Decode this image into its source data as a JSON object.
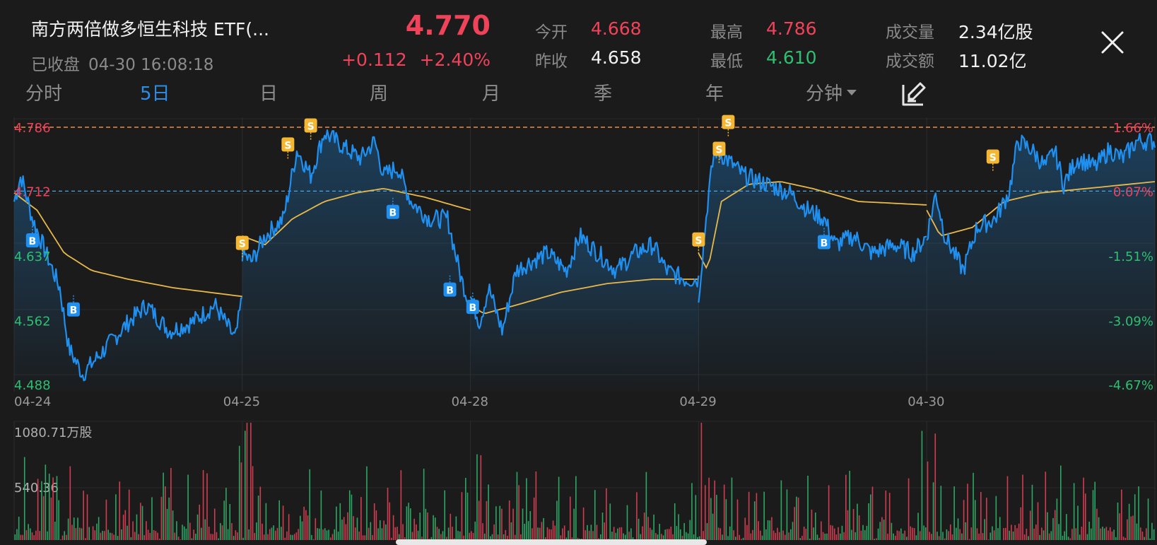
{
  "header": {
    "title": "南方两倍做多恒生科技 ETF(...",
    "status": "已收盘",
    "datetime": "04-30 16:08:18",
    "price": "4.770",
    "change": "+0.112",
    "change_pct": "+2.40%"
  },
  "stats": {
    "open_label": "今开",
    "open_value": "4.668",
    "prev_close_label": "昨收",
    "prev_close_value": "4.658",
    "high_label": "最高",
    "high_value": "4.786",
    "low_label": "最低",
    "low_value": "4.610",
    "volume_label": "成交量",
    "volume_value": "2.34亿股",
    "turnover_label": "成交额",
    "turnover_value": "11.02亿"
  },
  "tabs": [
    "分时",
    "5日",
    "日",
    "周",
    "月",
    "季",
    "年",
    "分钟"
  ],
  "active_tab": "5日",
  "icons": {
    "close": "close-icon",
    "draw": "draw-edit-icon",
    "dropdown": "caret-down-icon"
  },
  "colors": {
    "up": "#f0435a",
    "down": "#2fbf71",
    "price_line": "#1f8ff0",
    "avg_line": "#e8b94a",
    "buy_marker": "#1f8ff0",
    "sell_marker": "#f5b731"
  },
  "price_axis_left": [
    "4.786",
    "4.712",
    "4.637",
    "4.562",
    "4.488"
  ],
  "price_axis_right": [
    "1.66%",
    "0.07%",
    "-1.51%",
    "-3.09%",
    "-4.67%"
  ],
  "date_axis": [
    "04-24",
    "04-25",
    "04-28",
    "04-29",
    "04-30"
  ],
  "volume_axis": [
    "1080.71万股",
    "540.36"
  ],
  "chart_data": {
    "type": "line",
    "x": [
      "04-24",
      "04-25",
      "04-28",
      "04-29",
      "04-30"
    ],
    "ylim": [
      4.488,
      4.786
    ],
    "reference_lines": {
      "high": 4.786,
      "prev_close": 4.712
    },
    "series": [
      {
        "kind": "price",
        "days": [
          [
            [
              0,
              4.7
            ],
            [
              0.03,
              4.73
            ],
            [
              0.08,
              4.68
            ],
            [
              0.14,
              4.64
            ],
            [
              0.2,
              4.6
            ],
            [
              0.24,
              4.53
            ],
            [
              0.3,
              4.5
            ],
            [
              0.4,
              4.53
            ],
            [
              0.5,
              4.56
            ],
            [
              0.58,
              4.58
            ],
            [
              0.68,
              4.55
            ],
            [
              0.78,
              4.56
            ],
            [
              0.88,
              4.58
            ],
            [
              0.97,
              4.54
            ],
            [
              1.0,
              4.59
            ]
          ],
          [
            [
              0,
              4.64
            ],
            [
              0.04,
              4.63
            ],
            [
              0.1,
              4.66
            ],
            [
              0.18,
              4.68
            ],
            [
              0.24,
              4.76
            ],
            [
              0.3,
              4.73
            ],
            [
              0.36,
              4.78
            ],
            [
              0.46,
              4.76
            ],
            [
              0.52,
              4.75
            ],
            [
              0.58,
              4.77
            ],
            [
              0.62,
              4.73
            ],
            [
              0.68,
              4.74
            ],
            [
              0.74,
              4.7
            ],
            [
              0.82,
              4.68
            ],
            [
              0.9,
              4.68
            ],
            [
              0.96,
              4.61
            ],
            [
              1.0,
              4.58
            ]
          ],
          [
            [
              0,
              4.59
            ],
            [
              0.04,
              4.56
            ],
            [
              0.08,
              4.6
            ],
            [
              0.14,
              4.55
            ],
            [
              0.2,
              4.62
            ],
            [
              0.26,
              4.63
            ],
            [
              0.34,
              4.64
            ],
            [
              0.42,
              4.62
            ],
            [
              0.48,
              4.66
            ],
            [
              0.56,
              4.64
            ],
            [
              0.64,
              4.62
            ],
            [
              0.72,
              4.64
            ],
            [
              0.8,
              4.65
            ],
            [
              0.86,
              4.62
            ],
            [
              0.94,
              4.61
            ],
            [
              1.0,
              4.61
            ]
          ],
          [
            [
              0,
              4.59
            ],
            [
              0.04,
              4.7
            ],
            [
              0.07,
              4.76
            ],
            [
              0.12,
              4.75
            ],
            [
              0.2,
              4.73
            ],
            [
              0.3,
              4.72
            ],
            [
              0.4,
              4.71
            ],
            [
              0.48,
              4.69
            ],
            [
              0.55,
              4.68
            ],
            [
              0.6,
              4.65
            ],
            [
              0.68,
              4.66
            ],
            [
              0.76,
              4.64
            ],
            [
              0.86,
              4.65
            ],
            [
              0.94,
              4.64
            ],
            [
              1.0,
              4.66
            ]
          ],
          [
            [
              0,
              4.66
            ],
            [
              0.04,
              4.71
            ],
            [
              0.08,
              4.66
            ],
            [
              0.16,
              4.62
            ],
            [
              0.22,
              4.67
            ],
            [
              0.3,
              4.68
            ],
            [
              0.36,
              4.71
            ],
            [
              0.4,
              4.77
            ],
            [
              0.46,
              4.76
            ],
            [
              0.52,
              4.74
            ],
            [
              0.56,
              4.76
            ],
            [
              0.6,
              4.72
            ],
            [
              0.66,
              4.75
            ],
            [
              0.74,
              4.74
            ],
            [
              0.8,
              4.76
            ],
            [
              0.86,
              4.75
            ],
            [
              0.92,
              4.77
            ],
            [
              1.0,
              4.77
            ]
          ]
        ]
      },
      {
        "kind": "average",
        "days": [
          [
            [
              0,
              4.71
            ],
            [
              0.1,
              4.69
            ],
            [
              0.22,
              4.64
            ],
            [
              0.34,
              4.62
            ],
            [
              0.5,
              4.61
            ],
            [
              0.7,
              4.6
            ],
            [
              1.0,
              4.59
            ]
          ],
          [
            [
              0,
              4.66
            ],
            [
              0.1,
              4.65
            ],
            [
              0.22,
              4.68
            ],
            [
              0.36,
              4.7
            ],
            [
              0.5,
              4.71
            ],
            [
              0.62,
              4.715
            ],
            [
              0.8,
              4.705
            ],
            [
              1.0,
              4.69
            ]
          ],
          [
            [
              0,
              4.58
            ],
            [
              0.06,
              4.57
            ],
            [
              0.2,
              4.58
            ],
            [
              0.4,
              4.595
            ],
            [
              0.6,
              4.605
            ],
            [
              0.8,
              4.61
            ],
            [
              1.0,
              4.61
            ]
          ],
          [
            [
              0,
              4.64
            ],
            [
              0.04,
              4.62
            ],
            [
              0.1,
              4.7
            ],
            [
              0.22,
              4.72
            ],
            [
              0.36,
              4.723
            ],
            [
              0.5,
              4.715
            ],
            [
              0.7,
              4.7
            ],
            [
              1.0,
              4.696
            ]
          ],
          [
            [
              0,
              4.69
            ],
            [
              0.06,
              4.66
            ],
            [
              0.2,
              4.67
            ],
            [
              0.34,
              4.7
            ],
            [
              0.5,
              4.71
            ],
            [
              0.7,
              4.715
            ],
            [
              1.0,
              4.723
            ]
          ]
        ]
      }
    ],
    "markers": [
      {
        "label": "B",
        "day": 0,
        "t": 0.08,
        "price": 4.655
      },
      {
        "label": "B",
        "day": 0,
        "t": 0.26,
        "price": 4.575
      },
      {
        "label": "S",
        "day": 1,
        "t": 0.0,
        "price": 4.652
      },
      {
        "label": "S",
        "day": 1,
        "t": 0.2,
        "price": 4.766
      },
      {
        "label": "S",
        "day": 1,
        "t": 0.3,
        "price": 4.788
      },
      {
        "label": "B",
        "day": 1,
        "t": 0.66,
        "price": 4.688
      },
      {
        "label": "B",
        "day": 1,
        "t": 0.91,
        "price": 4.598
      },
      {
        "label": "B",
        "day": 2,
        "t": 0.01,
        "price": 4.578
      },
      {
        "label": "S",
        "day": 3,
        "t": 0.0,
        "price": 4.656
      },
      {
        "label": "S",
        "day": 3,
        "t": 0.09,
        "price": 4.761
      },
      {
        "label": "S",
        "day": 3,
        "t": 0.13,
        "price": 4.792
      },
      {
        "label": "B",
        "day": 3,
        "t": 0.55,
        "price": 4.653
      },
      {
        "label": "S",
        "day": 4,
        "t": 0.29,
        "price": 4.752
      }
    ],
    "volume_max": 1080.71,
    "volume_unit": "万股"
  }
}
